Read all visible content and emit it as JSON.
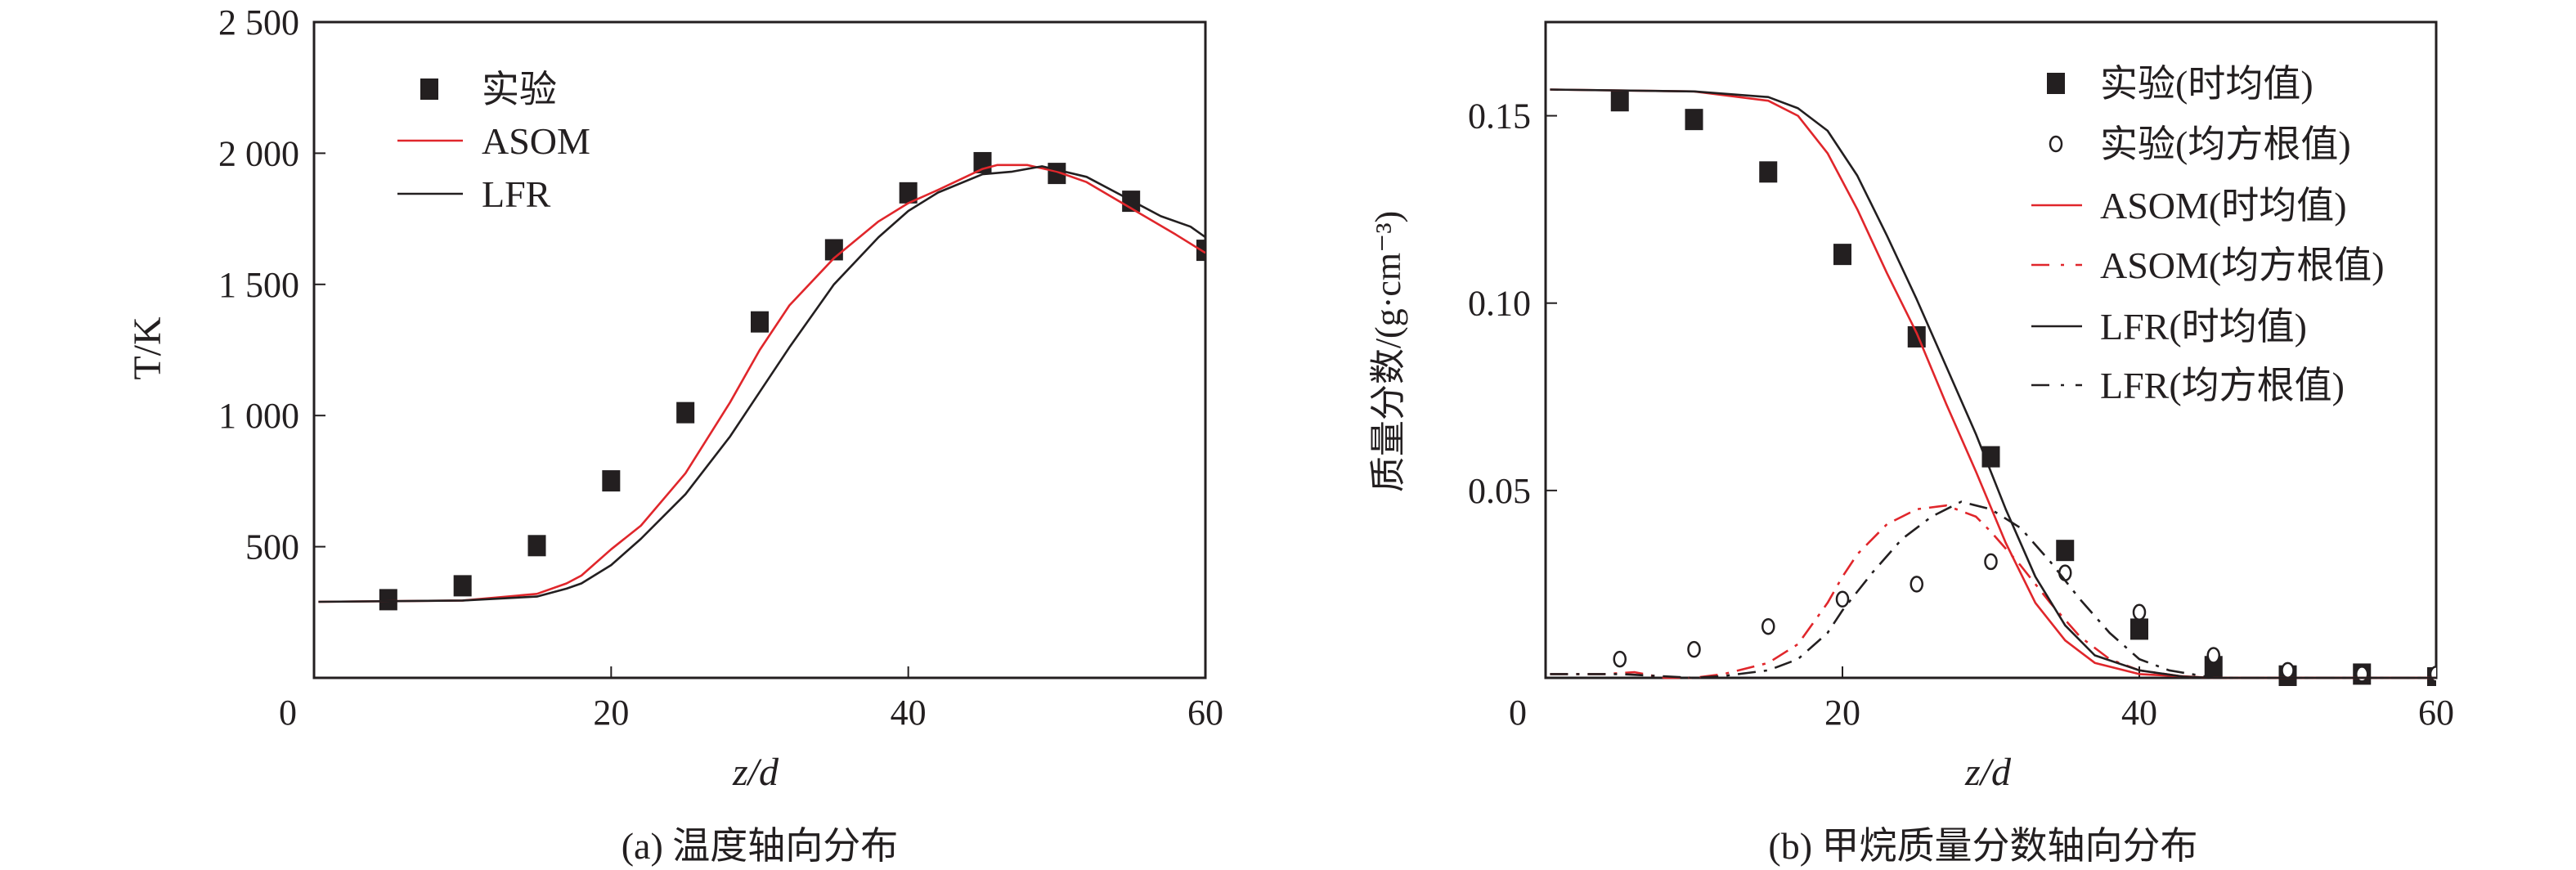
{
  "chart_data": [
    {
      "type": "line",
      "caption": "(a) 温度轴向分布",
      "xlabel": "z/d",
      "ylabel": "T/K",
      "xlim": [
        0,
        60
      ],
      "ylim": [
        0,
        2500
      ],
      "xticks": [
        0,
        20,
        40,
        60
      ],
      "xtick_labels": [
        "0",
        "20",
        "40",
        "60"
      ],
      "yticks": [
        500,
        1000,
        1500,
        2000,
        2500
      ],
      "ytick_labels": [
        "500",
        "1 000",
        "1 500",
        "2 000",
        "2 500"
      ],
      "grid": false,
      "legend_position": "top-left",
      "series": [
        {
          "name": "实验",
          "kind": "scatter",
          "marker": "filled-square",
          "color": "#231f20",
          "x": [
            5,
            10,
            15,
            20,
            25,
            30,
            35,
            40,
            45,
            50,
            55,
            60
          ],
          "y": [
            298,
            351,
            504,
            751,
            1011,
            1357,
            1632,
            1849,
            1964,
            1923,
            1817,
            1630
          ]
        },
        {
          "name": "ASOM",
          "kind": "line",
          "style": "solid",
          "color": "#e0262b",
          "x": [
            0.3,
            10,
            15,
            17,
            18,
            20,
            22,
            25,
            28,
            30,
            32,
            35,
            38,
            40,
            42,
            45,
            46,
            48,
            50,
            52,
            55,
            58,
            60
          ],
          "y": [
            290,
            295,
            320,
            360,
            390,
            490,
            580,
            780,
            1050,
            1250,
            1420,
            1600,
            1740,
            1810,
            1860,
            1940,
            1955,
            1955,
            1930,
            1890,
            1790,
            1690,
            1620
          ]
        },
        {
          "name": "LFR",
          "kind": "line",
          "style": "solid",
          "color": "#231f20",
          "x": [
            0.3,
            10,
            15,
            17,
            18,
            20,
            22,
            25,
            28,
            30,
            32,
            35,
            38,
            40,
            42,
            45,
            47,
            49,
            52,
            55,
            57,
            59,
            60
          ],
          "y": [
            290,
            295,
            310,
            340,
            360,
            430,
            530,
            700,
            920,
            1090,
            1260,
            1500,
            1680,
            1780,
            1850,
            1920,
            1930,
            1950,
            1910,
            1820,
            1760,
            1720,
            1680
          ]
        }
      ]
    },
    {
      "type": "line",
      "caption": "(b) 甲烷质量分数轴向分布",
      "xlabel": "z/d",
      "ylabel": "质量分数/(g·cm⁻³)",
      "xlim": [
        0,
        60
      ],
      "ylim": [
        0,
        0.175
      ],
      "xticks": [
        0,
        20,
        40,
        60
      ],
      "xtick_labels": [
        "0",
        "20",
        "40",
        "60"
      ],
      "yticks": [
        0.05,
        0.1,
        0.15
      ],
      "ytick_labels": [
        "0.05",
        "0.10",
        "0.15"
      ],
      "grid": false,
      "legend_position": "top-right",
      "series": [
        {
          "name": "实验(时均值)",
          "kind": "scatter",
          "marker": "filled-square",
          "color": "#231f20",
          "x": [
            5,
            10,
            15,
            20,
            25,
            30,
            35,
            40,
            45,
            50,
            55,
            60
          ],
          "y": [
            0.154,
            0.149,
            0.135,
            0.113,
            0.091,
            0.059,
            0.034,
            0.013,
            0.003,
            0.0005,
            0.001,
            0
          ]
        },
        {
          "name": "实验(均方根值)",
          "kind": "scatter",
          "marker": "open-circle",
          "color": "#231f20",
          "x": [
            5,
            10,
            15,
            20,
            25,
            30,
            35,
            40,
            45,
            50,
            55,
            60
          ],
          "y": [
            0.005,
            0.0076,
            0.0137,
            0.021,
            0.025,
            0.031,
            0.028,
            0.0175,
            0.006,
            0.002,
            0.001,
            0.001
          ]
        },
        {
          "name": "ASOM(时均值)",
          "kind": "line",
          "style": "solid",
          "color": "#e0262b",
          "x": [
            0.3,
            10,
            15,
            17,
            19,
            21,
            23,
            25,
            27,
            29,
            31,
            33,
            35,
            37,
            40,
            45,
            60
          ],
          "y": [
            0.157,
            0.1565,
            0.154,
            0.15,
            0.14,
            0.125,
            0.108,
            0.092,
            0.073,
            0.055,
            0.036,
            0.02,
            0.01,
            0.004,
            0.001,
            0,
            0
          ]
        },
        {
          "name": "ASOM(均方根值)",
          "kind": "line",
          "style": "dashdot",
          "color": "#e0262b",
          "x": [
            0.3,
            4,
            6,
            8,
            10,
            12,
            15,
            17,
            19,
            20,
            21,
            23,
            25,
            27,
            29,
            30,
            32,
            34,
            36,
            38,
            40,
            43,
            45,
            60
          ],
          "y": [
            0.001,
            0.001,
            0.0015,
            0,
            0,
            0.001,
            0.004,
            0.009,
            0.02,
            0.027,
            0.033,
            0.041,
            0.045,
            0.046,
            0.043,
            0.039,
            0.03,
            0.02,
            0.011,
            0.005,
            0.002,
            0.0003,
            0,
            0
          ]
        },
        {
          "name": "LFR(时均值)",
          "kind": "line",
          "style": "solid",
          "color": "#231f20",
          "x": [
            0.3,
            10,
            15,
            17,
            19,
            21,
            23,
            25,
            27,
            29,
            31,
            33,
            35,
            37,
            40,
            43,
            45,
            60
          ],
          "y": [
            0.157,
            0.1565,
            0.155,
            0.152,
            0.146,
            0.134,
            0.118,
            0.101,
            0.083,
            0.065,
            0.045,
            0.027,
            0.014,
            0.006,
            0.002,
            0.0003,
            0,
            0
          ]
        },
        {
          "name": "LFR(均方根值)",
          "kind": "line",
          "style": "dashdot",
          "color": "#231f20",
          "x": [
            0.3,
            5,
            10,
            12,
            15,
            17,
            19,
            20,
            22,
            24,
            26,
            28,
            30,
            32,
            34,
            36,
            38,
            40,
            42,
            45,
            60
          ],
          "y": [
            0.001,
            0.001,
            0,
            0.0005,
            0.002,
            0.005,
            0.012,
            0.018,
            0.028,
            0.037,
            0.043,
            0.047,
            0.045,
            0.04,
            0.031,
            0.021,
            0.012,
            0.005,
            0.002,
            0,
            0
          ]
        }
      ]
    }
  ]
}
